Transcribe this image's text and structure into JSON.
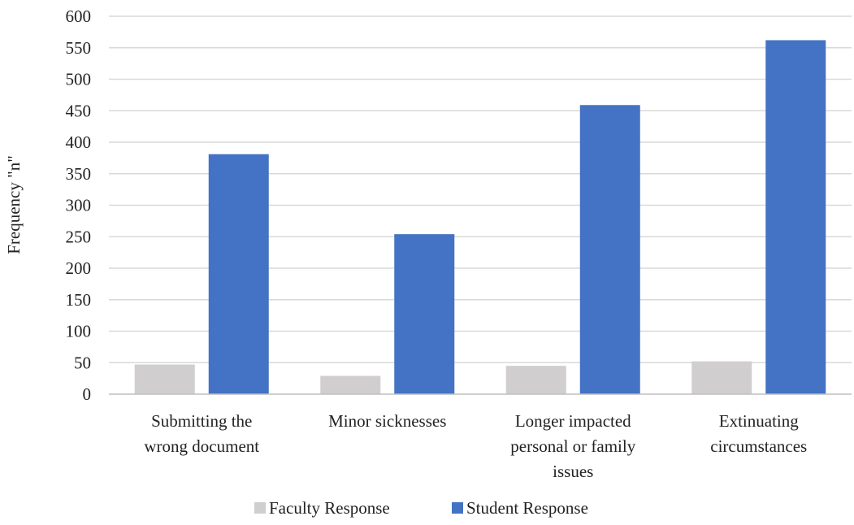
{
  "chart_data": {
    "type": "bar",
    "title": "",
    "xlabel": "",
    "ylabel": "Frequency \"n\"",
    "ylim": [
      0,
      600
    ],
    "ytick_step": 50,
    "grid": true,
    "legend_position": "bottom",
    "categories": [
      [
        "Submitting the",
        "wrong document"
      ],
      [
        "Minor sicknesses"
      ],
      [
        "Longer impacted",
        "personal or family",
        "issues"
      ],
      [
        "Extinuating",
        "circumstances"
      ]
    ],
    "series": [
      {
        "name": "Faculty Response",
        "color": "#d0cece",
        "values": [
          47,
          29,
          45,
          52
        ]
      },
      {
        "name": "Student Response",
        "color": "#4472c4",
        "values": [
          381,
          254,
          459,
          562
        ]
      }
    ],
    "colors": {
      "grid": "#d9d9d9",
      "axis": "#bfbfbf"
    }
  }
}
